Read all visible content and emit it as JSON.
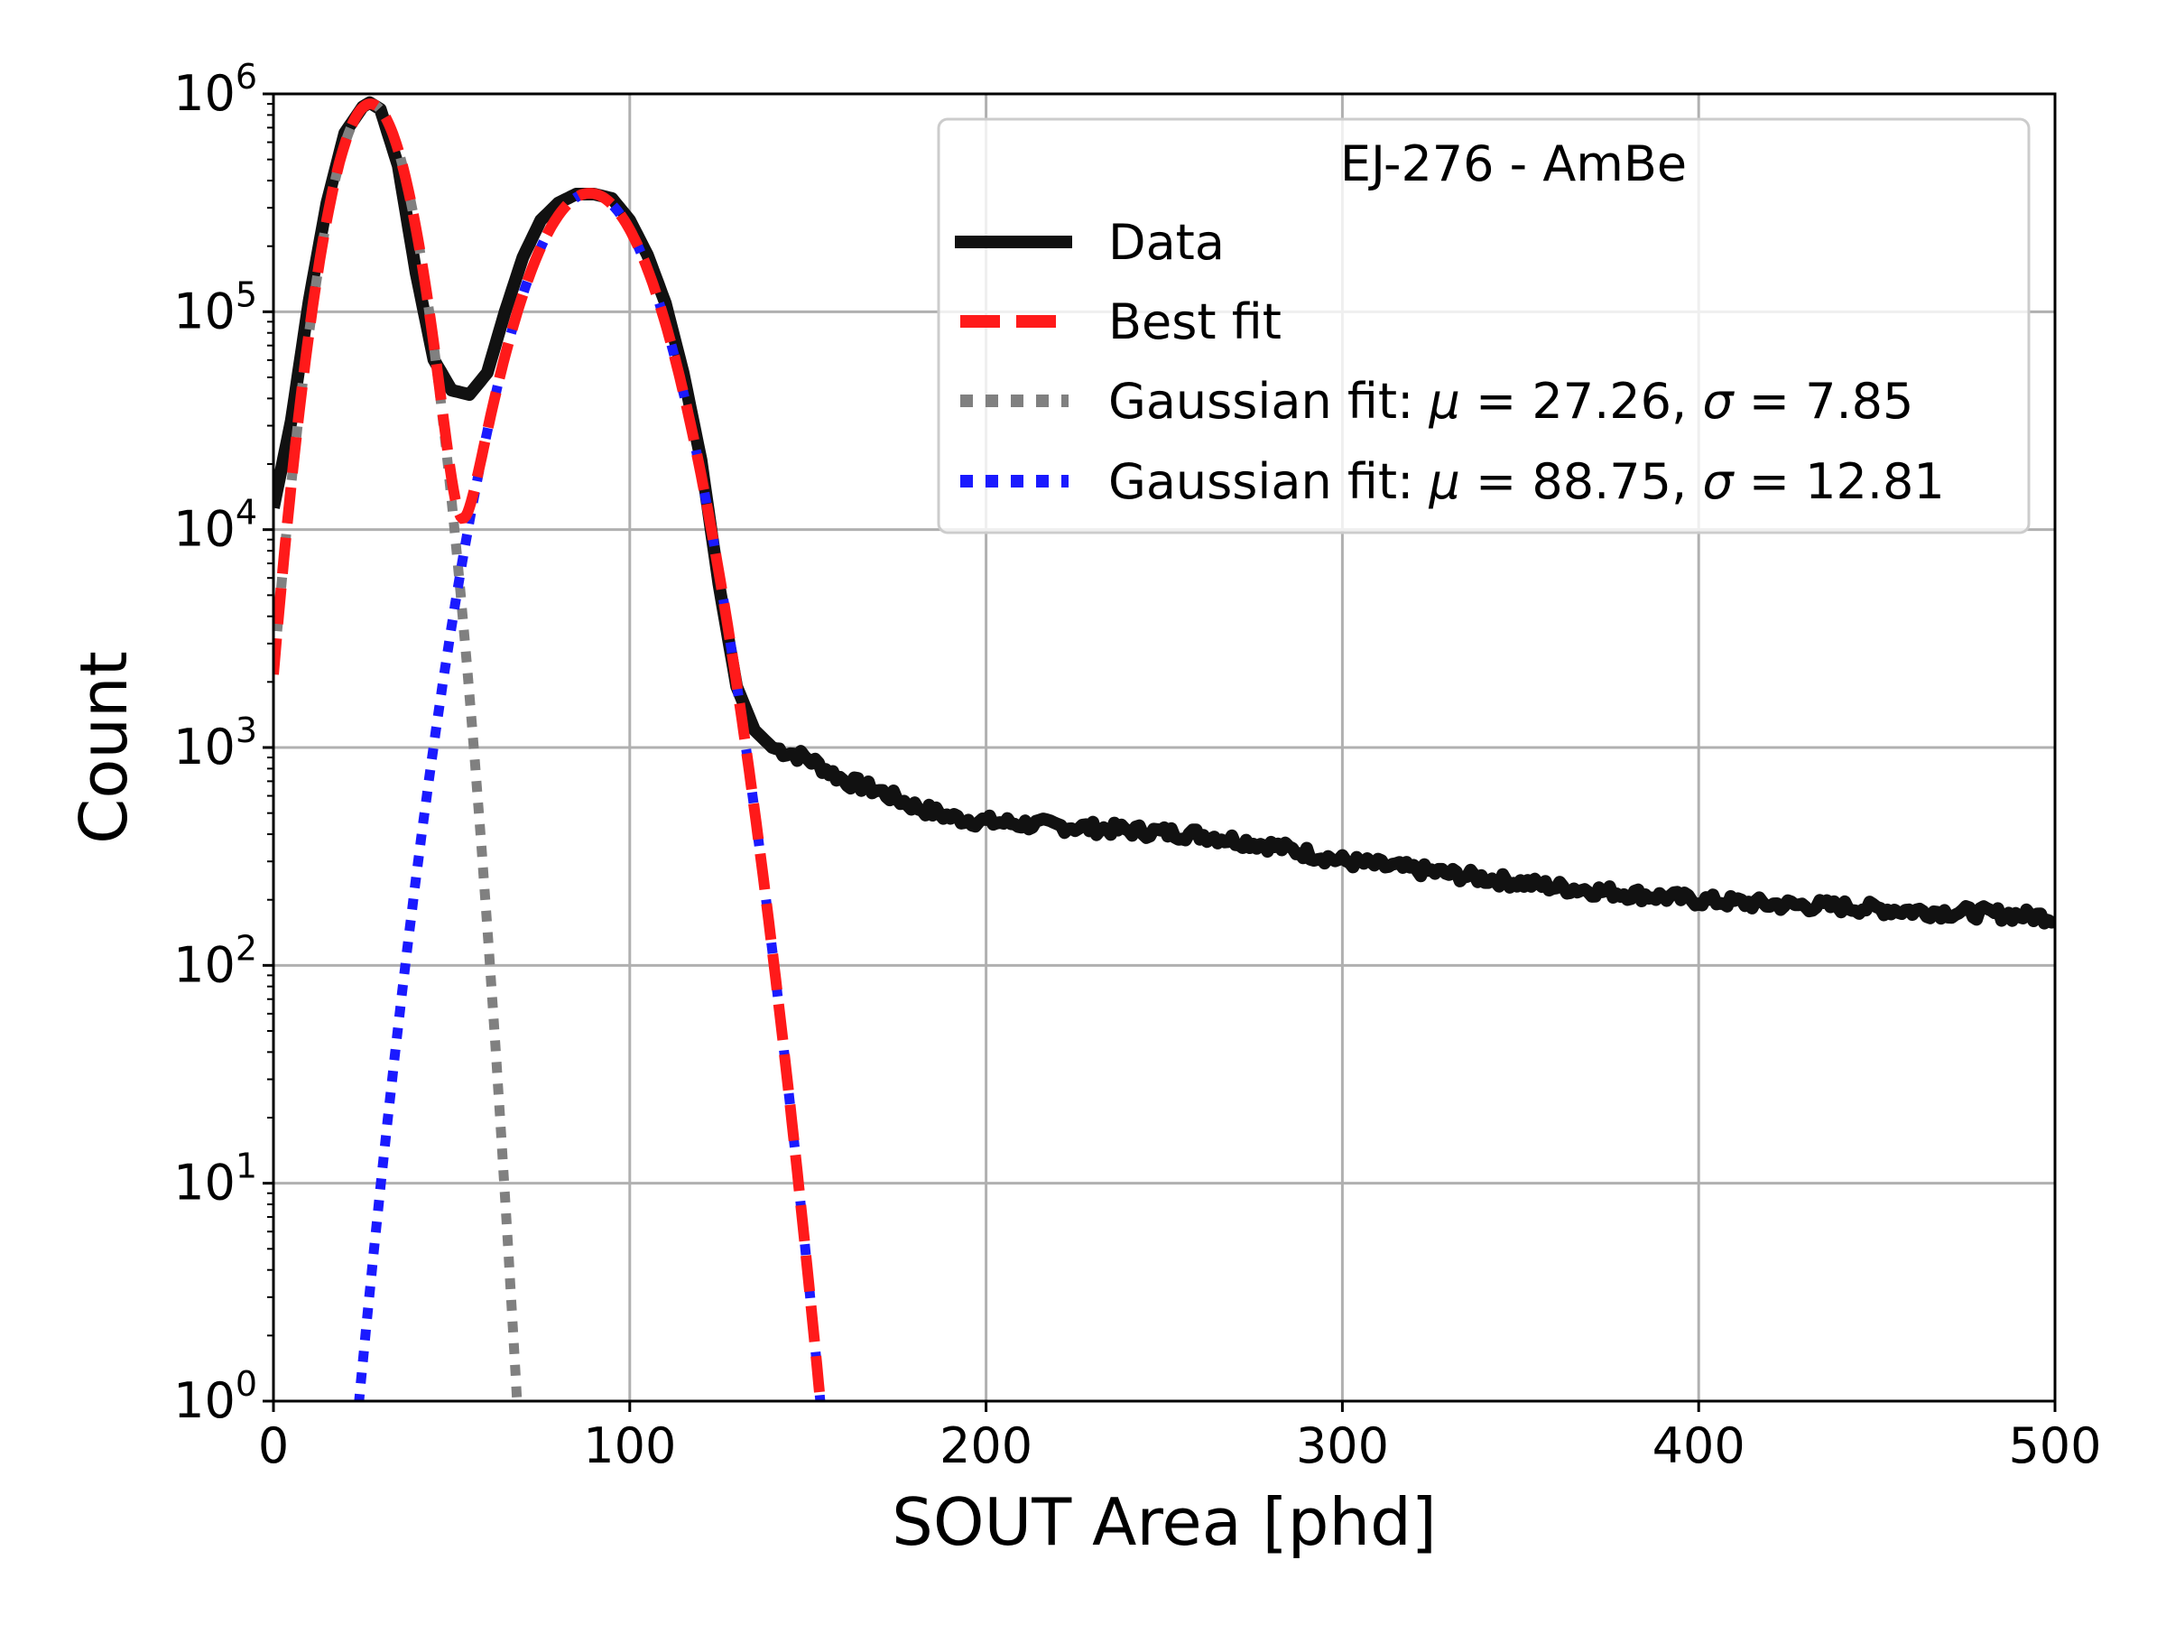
{
  "chart_data": {
    "type": "line",
    "title": "",
    "xlabel": "SOUT Area [phd]",
    "ylabel": "Count",
    "xlim": [
      0,
      500
    ],
    "ylim_log10": [
      0,
      6
    ],
    "yscale": "log",
    "grid": true,
    "x_ticks": [
      0,
      100,
      200,
      300,
      400,
      500
    ],
    "x_tick_labels": [
      "0",
      "100",
      "200",
      "300",
      "400",
      "500"
    ],
    "y_ticks": [
      {
        "base": "10",
        "exp": "0"
      },
      {
        "base": "10",
        "exp": "1"
      },
      {
        "base": "10",
        "exp": "2"
      },
      {
        "base": "10",
        "exp": "3"
      },
      {
        "base": "10",
        "exp": "4"
      },
      {
        "base": "10",
        "exp": "5"
      },
      {
        "base": "10",
        "exp": "6"
      }
    ],
    "legend": {
      "position": "top-right",
      "title": "EJ-276 - AmBe",
      "entries": [
        {
          "label": "Data",
          "color": "#111111",
          "style": "solid"
        },
        {
          "label": "Best fit",
          "color": "#ff1a1a",
          "style": "dashed"
        },
        {
          "prefix": "Gaussian fit: ",
          "mu_sym": "μ",
          "mu_text": " = 27.26, ",
          "sigma_sym": "σ",
          "sigma_text": " = 7.85",
          "color": "#808080",
          "style": "dotted"
        },
        {
          "prefix": "Gaussian fit: ",
          "mu_sym": "μ",
          "mu_text": " = 88.75, ",
          "sigma_sym": "σ",
          "sigma_text": " = 12.81",
          "color": "#1a1aff",
          "style": "dotted"
        }
      ]
    },
    "series": [
      {
        "name": "Data",
        "color": "#111111",
        "x": [
          0,
          5,
          10,
          15,
          20,
          25,
          27,
          30,
          35,
          40,
          45,
          50,
          55,
          60,
          65,
          70,
          75,
          80,
          85,
          90,
          95,
          100,
          105,
          110,
          115,
          120,
          125,
          130,
          135,
          140,
          150,
          160,
          170,
          180,
          190,
          200,
          220,
          240,
          260,
          280,
          300,
          320,
          340,
          360,
          380,
          400,
          420,
          440,
          460,
          480,
          500
        ],
        "y_log10": [
          4.1,
          4.5,
          5.05,
          5.5,
          5.82,
          5.94,
          5.96,
          5.93,
          5.67,
          5.18,
          4.78,
          4.64,
          4.62,
          4.72,
          5.0,
          5.25,
          5.42,
          5.5,
          5.54,
          5.54,
          5.52,
          5.42,
          5.26,
          5.04,
          4.72,
          4.32,
          3.75,
          3.28,
          3.08,
          3.0,
          2.95,
          2.85,
          2.8,
          2.73,
          2.68,
          2.66,
          2.64,
          2.62,
          2.6,
          2.55,
          2.48,
          2.44,
          2.4,
          2.36,
          2.33,
          2.3,
          2.28,
          2.27,
          2.25,
          2.24,
          2.22
        ]
      },
      {
        "name": "Best fit",
        "color": "#ff1a1a",
        "components": [
          {
            "amplitude": 900000,
            "mu": 27.26,
            "sigma": 7.85
          },
          {
            "amplitude": 350000,
            "mu": 88.75,
            "sigma": 12.81
          }
        ],
        "x_range": [
          0,
          155
        ]
      },
      {
        "name": "Gaussian fit 1",
        "color": "#808080",
        "amplitude": 900000,
        "mu": 27.26,
        "sigma": 7.85,
        "x_range": [
          0,
          70
        ]
      },
      {
        "name": "Gaussian fit 2",
        "color": "#1a1aff",
        "amplitude": 350000,
        "mu": 88.75,
        "sigma": 12.81,
        "x_range": [
          20,
          155
        ]
      }
    ]
  }
}
